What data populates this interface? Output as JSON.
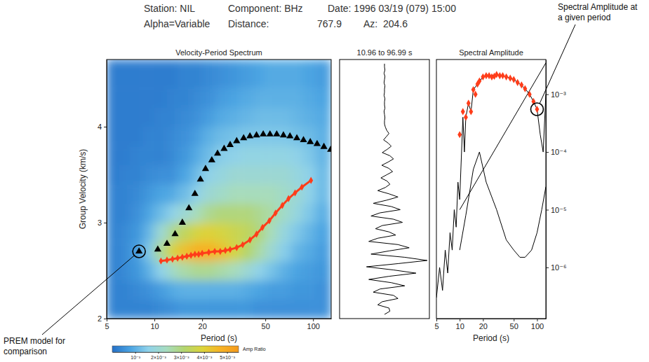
{
  "header": {
    "station": "Station: NIL",
    "component": "Component: BHz",
    "date": "Date: 1996 03/19 (079) 15:00",
    "alpha": "Alpha=Variable",
    "distance_label": "Distance:",
    "distance": 767.9,
    "az_label": "Az:",
    "az": 204.6
  },
  "chart_data": [
    {
      "type": "heatmap",
      "title": "Velocity-Period Spectrum",
      "xlabel": "Period (s)",
      "ylabel": "Group Velocity (km/s)",
      "log": "x",
      "xlim": [
        5,
        130
      ],
      "xticks": [
        5,
        10,
        20,
        50,
        100
      ],
      "ylim": [
        2,
        4.7
      ],
      "yticks": [
        2,
        3,
        4
      ],
      "heatmap": {
        "x_edges": [
          5,
          6,
          7,
          8.5,
          10,
          12,
          14,
          17,
          20,
          24,
          29,
          35,
          42,
          50,
          60,
          72,
          86,
          103,
          130
        ],
        "y_edges": [
          2,
          2.2,
          2.4,
          2.6,
          2.8,
          3,
          3.2,
          3.4,
          3.6,
          3.8,
          4,
          4.2,
          4.4,
          4.7
        ],
        "values": [
          [
            0.0003,
            0.0003,
            0.0003,
            0.0003,
            0.0004,
            0.0005,
            0.0006,
            0.0006,
            0.0006,
            0.0006,
            0.0006,
            0.0006,
            0.0005,
            0.0005,
            0.0005,
            0.0005,
            0.0005,
            0.0005
          ],
          [
            0.0003,
            0.0003,
            0.0004,
            0.0005,
            0.0007,
            0.0009,
            0.001,
            0.001,
            0.001,
            0.001,
            0.001,
            0.0009,
            0.0008,
            0.0007,
            0.0007,
            0.0006,
            0.0006,
            0.0005
          ],
          [
            0.0003,
            0.0004,
            0.0006,
            0.001,
            0.0016,
            0.0022,
            0.0026,
            0.0028,
            0.0028,
            0.0026,
            0.0024,
            0.002,
            0.0016,
            0.0013,
            0.001,
            0.0008,
            0.0007,
            0.0006
          ],
          [
            0.0003,
            0.0004,
            0.0007,
            0.0014,
            0.0028,
            0.0038,
            0.0044,
            0.0048,
            0.0048,
            0.0044,
            0.0038,
            0.0032,
            0.0026,
            0.002,
            0.0015,
            0.0011,
            0.0009,
            0.0007
          ],
          [
            0.0003,
            0.0004,
            0.0006,
            0.0011,
            0.002,
            0.0028,
            0.0034,
            0.0038,
            0.004,
            0.0038,
            0.0036,
            0.0034,
            0.003,
            0.0024,
            0.0018,
            0.0014,
            0.0011,
            0.0008
          ],
          [
            0.0003,
            0.0003,
            0.0005,
            0.0008,
            0.0012,
            0.0016,
            0.002,
            0.0024,
            0.0028,
            0.003,
            0.003,
            0.003,
            0.0028,
            0.0026,
            0.0022,
            0.0018,
            0.0014,
            0.001
          ],
          [
            0.0003,
            0.0003,
            0.0004,
            0.0006,
            0.0008,
            0.0009,
            0.0012,
            0.0016,
            0.002,
            0.0022,
            0.0024,
            0.0024,
            0.0024,
            0.0024,
            0.0022,
            0.002,
            0.0016,
            0.0012
          ],
          [
            0.0002,
            0.0003,
            0.0003,
            0.0004,
            0.0005,
            0.0005,
            0.0008,
            0.0012,
            0.0016,
            0.0018,
            0.002,
            0.002,
            0.002,
            0.002,
            0.002,
            0.0018,
            0.0016,
            0.0012
          ],
          [
            0.0002,
            0.0002,
            0.0003,
            0.0003,
            0.0003,
            0.0004,
            0.0006,
            0.0009,
            0.0012,
            0.0015,
            0.0016,
            0.0017,
            0.0017,
            0.0017,
            0.0017,
            0.0016,
            0.0014,
            0.0011
          ],
          [
            0.0002,
            0.0002,
            0.0002,
            0.0003,
            0.0003,
            0.0004,
            0.0005,
            0.0007,
            0.001,
            0.0012,
            0.0013,
            0.0014,
            0.0014,
            0.0014,
            0.0014,
            0.0013,
            0.0012,
            0.001
          ],
          [
            0.0002,
            0.0002,
            0.0002,
            0.0002,
            0.0003,
            0.0003,
            0.0004,
            0.0005,
            0.0007,
            0.0009,
            0.001,
            0.0011,
            0.0012,
            0.0012,
            0.0012,
            0.0011,
            0.001,
            0.0009
          ],
          [
            0.0002,
            0.0002,
            0.0002,
            0.0002,
            0.0002,
            0.0003,
            0.0003,
            0.0004,
            0.0005,
            0.0007,
            0.0008,
            0.0009,
            0.001,
            0.001,
            0.001,
            0.001,
            0.0009,
            0.0008
          ],
          [
            0.0002,
            0.0002,
            0.0002,
            0.0002,
            0.0002,
            0.0002,
            0.0003,
            0.0003,
            0.0004,
            0.0005,
            0.0006,
            0.0007,
            0.0008,
            0.0009,
            0.0009,
            0.0009,
            0.0008,
            0.0007
          ]
        ],
        "colorbar": {
          "label": "Amp Ratio",
          "lim": [
            0,
            0.0055
          ],
          "ticks": [
            {
              "value": 0.001,
              "label": "10⁻³"
            },
            {
              "value": 0.002,
              "label": "2×10⁻³"
            },
            {
              "value": 0.003,
              "label": "3×10⁻³"
            },
            {
              "value": 0.004,
              "label": "4×10⁻³"
            },
            {
              "value": 0.005,
              "label": "5×10⁻³"
            }
          ]
        }
      },
      "series": [
        {
          "type": "scatter",
          "marker": "triangle",
          "color": "#000000",
          "x": [
            8,
            10.5,
            12,
            13.5,
            15,
            16.5,
            18,
            19.5,
            21,
            23,
            25,
            27.5,
            30,
            33,
            36.5,
            40,
            44,
            48.5,
            53.5,
            59,
            65,
            71.5,
            79,
            87,
            96,
            106,
            117,
            129
          ],
          "values": [
            2.7,
            2.72,
            2.78,
            2.88,
            3.0,
            3.15,
            3.3,
            3.45,
            3.56,
            3.65,
            3.72,
            3.77,
            3.81,
            3.85,
            3.88,
            3.9,
            3.91,
            3.92,
            3.92,
            3.92,
            3.91,
            3.9,
            3.88,
            3.86,
            3.84,
            3.82,
            3.79,
            3.76
          ]
        },
        {
          "type": "line",
          "marker": "diamond",
          "line_style": "solid",
          "color": "#ff3d1a",
          "x": [
            11,
            12,
            13,
            14,
            15,
            16,
            17,
            18,
            19,
            20,
            22,
            24,
            26,
            28,
            30,
            33,
            36,
            40,
            44,
            48,
            53,
            58,
            64,
            70,
            77,
            85,
            97
          ],
          "values": [
            2.6,
            2.61,
            2.62,
            2.63,
            2.64,
            2.65,
            2.66,
            2.67,
            2.67,
            2.68,
            2.69,
            2.7,
            2.7,
            2.71,
            2.72,
            2.74,
            2.77,
            2.82,
            2.88,
            2.95,
            3.02,
            3.1,
            3.18,
            3.25,
            3.31,
            3.37,
            3.44
          ]
        }
      ]
    },
    {
      "type": "trace",
      "title": "10.96 to 96.99 s",
      "tick_labels": false,
      "xlim": [
        -1,
        1
      ],
      "series": [
        {
          "color": "#000000",
          "line_style": "solid",
          "values": [
            0,
            0,
            0.01,
            -0.01,
            0.01,
            0,
            -0.01,
            0.01,
            0,
            0,
            -0.01,
            0.01,
            0,
            0,
            0.01,
            -0.01,
            0,
            0.01,
            0,
            0,
            0.02,
            0.05,
            0.1,
            0.04,
            -0.02,
            0.08,
            0.15,
            0.06,
            -0.05,
            0.12,
            0.2,
            0.08,
            -0.06,
            0.1,
            0.18,
            0.05,
            -0.08,
            0.06,
            0.12,
            0.02,
            -0.15,
            0.1,
            0.3,
            0.05,
            -0.25,
            0.15,
            0.35,
            -0.1,
            -0.3,
            0.2,
            0.4,
            -0.05,
            -0.2,
            0.1,
            0.25,
            -0.15,
            -0.35,
            0.3,
            0.55,
            0.1,
            -0.3,
            0.45,
            0.95,
            0.3,
            -0.4,
            0.2,
            0.7,
            0.1,
            -0.35,
            0.15,
            0.45,
            -0.1,
            -0.25,
            0.2,
            0.3,
            -0.05,
            -0.15,
            0.1,
            0.12,
            0
          ]
        }
      ]
    },
    {
      "type": "line",
      "title": "Spectral Amplitude",
      "xlabel": "Period (s)",
      "log": true,
      "xlim": [
        5,
        130
      ],
      "xticks": [
        5,
        10,
        20,
        50,
        100
      ],
      "ylim": [
        1.3e-07,
        0.004
      ],
      "yticks": [
        {
          "value": 1e-06,
          "label": "10⁻⁶"
        },
        {
          "value": 1e-05,
          "label": "10⁻⁵"
        },
        {
          "value": 0.0001,
          "label": "10⁻⁴"
        },
        {
          "value": 0.001,
          "label": "10⁻³"
        }
      ],
      "series": [
        {
          "type": "line",
          "line_style": "solid",
          "color": "#000000",
          "x": [
            5,
            5.5,
            6,
            6.5,
            7,
            7.5,
            8,
            8.5,
            9,
            9.5,
            10,
            10.5,
            11,
            11.5,
            12,
            13,
            14,
            15,
            17,
            20,
            25,
            30,
            40,
            50,
            60,
            70,
            80,
            90,
            100,
            110,
            120,
            130
          ],
          "values": [
            3e-07,
            1e-06,
            4e-07,
            2e-06,
            8e-07,
            4e-06,
            2e-06,
            1e-05,
            5e-06,
            3e-05,
            1.5e-05,
            8e-05,
            0.0004,
            0.0001,
            0.0004,
            0.0007,
            0.0005,
            0.0012,
            0.0015,
            0.002,
            0.0021,
            0.0022,
            0.002,
            0.0018,
            0.0015,
            0.00125,
            0.001,
            0.00075,
            0.00055,
            0.0002,
            0.0001,
            0.001
          ]
        },
        {
          "type": "line",
          "line_style": "solid",
          "color": "#000000",
          "x": [
            10,
            130
          ],
          "values": [
            1e-05,
            0.0035
          ]
        },
        {
          "type": "line",
          "line_style": "solid",
          "color": "#000000",
          "x": [
            10,
            12,
            15,
            18,
            22,
            30,
            40,
            50,
            60,
            70,
            85,
            100,
            115,
            130
          ],
          "values": [
            2e-06,
            8e-06,
            5e-05,
            0.0001,
            3e-05,
            1e-05,
            3e-06,
            2e-06,
            1.5e-06,
            1.5e-06,
            2e-06,
            4e-06,
            1e-05,
            2.5e-05
          ]
        },
        {
          "type": "scatter",
          "marker": "diamond",
          "color": "#ff3d1a",
          "x": [
            10,
            11,
            12,
            13,
            14,
            15,
            16,
            17,
            18,
            20,
            22,
            24,
            26,
            28,
            30,
            33,
            36,
            40,
            45,
            50,
            56,
            63,
            70,
            80,
            90,
            100
          ],
          "values": [
            0.0002,
            0.0005,
            0.0004,
            0.0007,
            0.0005,
            0.0012,
            0.001,
            0.0015,
            0.0017,
            0.002,
            0.0021,
            0.0021,
            0.002,
            0.00205,
            0.0022,
            0.0021,
            0.0021,
            0.002,
            0.0019,
            0.0018,
            0.0016,
            0.00145,
            0.00125,
            0.001,
            0.00075,
            0.00055
          ]
        }
      ]
    }
  ],
  "annotations": [
    {
      "text": "Spectral Amplitude at a given period"
    },
    {
      "text": "PREM model for comparison"
    }
  ]
}
